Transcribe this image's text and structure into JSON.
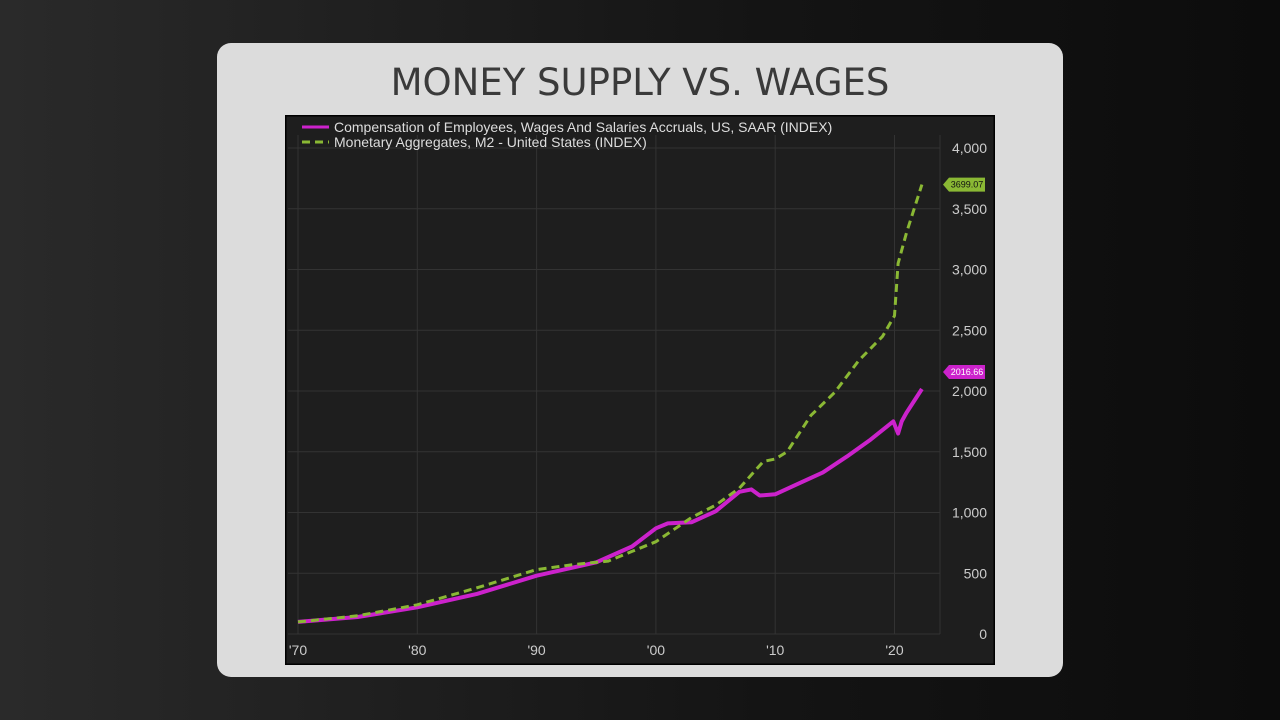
{
  "slide": {
    "title": "MONEY SUPPLY VS. WAGES"
  },
  "chart_data": {
    "type": "line",
    "title": "",
    "xlabel": "",
    "ylabel": "",
    "xlim": [
      1969,
      2025
    ],
    "ylim": [
      0,
      4000
    ],
    "x_ticks": [
      1970,
      1980,
      1990,
      2000,
      2010,
      2020
    ],
    "x_tick_labels": [
      "'70",
      "'80",
      "'90",
      "'00",
      "'10",
      "'20"
    ],
    "y_ticks": [
      0,
      500,
      1000,
      1500,
      2000,
      2500,
      3000,
      3500,
      4000
    ],
    "y_tick_labels": [
      "0",
      "500",
      "1,000",
      "1,500",
      "2,000",
      "2,500",
      "3,000",
      "3,500",
      "4,000"
    ],
    "grid": true,
    "legend_position": "top-left",
    "background": "#1e1e1e",
    "series": [
      {
        "name": "Compensation of Employees, Wages And Salaries Accruals, US, SAAR (INDEX)",
        "color": "#cc22cc",
        "style": "solid",
        "last_label": "2016.66",
        "points": [
          [
            1970,
            100
          ],
          [
            1975,
            140
          ],
          [
            1980,
            220
          ],
          [
            1985,
            330
          ],
          [
            1990,
            480
          ],
          [
            1995,
            590
          ],
          [
            1998,
            720
          ],
          [
            2000,
            870
          ],
          [
            2001,
            910
          ],
          [
            2003,
            920
          ],
          [
            2005,
            1010
          ],
          [
            2007,
            1170
          ],
          [
            2008,
            1190
          ],
          [
            2008.7,
            1140
          ],
          [
            2010,
            1150
          ],
          [
            2012,
            1240
          ],
          [
            2014,
            1330
          ],
          [
            2016,
            1460
          ],
          [
            2018,
            1600
          ],
          [
            2019.9,
            1750
          ],
          [
            2020.3,
            1650
          ],
          [
            2020.6,
            1750
          ],
          [
            2021,
            1820
          ],
          [
            2022.3,
            2016.66
          ]
        ]
      },
      {
        "name": "Monetary Aggregates, M2 - United States (INDEX)",
        "color": "#8ab834",
        "style": "dashed",
        "last_label": "3699.07",
        "points": [
          [
            1970,
            100
          ],
          [
            1975,
            150
          ],
          [
            1980,
            240
          ],
          [
            1985,
            380
          ],
          [
            1990,
            530
          ],
          [
            1993,
            570
          ],
          [
            1996,
            600
          ],
          [
            1998,
            680
          ],
          [
            2000,
            760
          ],
          [
            2003,
            960
          ],
          [
            2005,
            1060
          ],
          [
            2007,
            1200
          ],
          [
            2009,
            1420
          ],
          [
            2010,
            1440
          ],
          [
            2011,
            1500
          ],
          [
            2013,
            1800
          ],
          [
            2015,
            1990
          ],
          [
            2017,
            2250
          ],
          [
            2019,
            2450
          ],
          [
            2020,
            2620
          ],
          [
            2020.3,
            3050
          ],
          [
            2021,
            3300
          ],
          [
            2022.3,
            3699.07
          ]
        ]
      }
    ]
  }
}
